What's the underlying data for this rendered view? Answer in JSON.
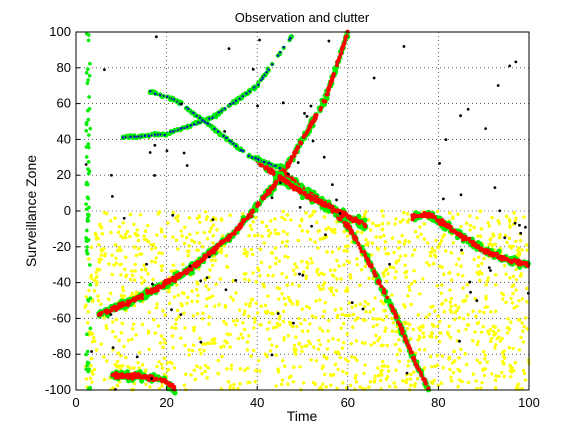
{
  "chart_data": {
    "type": "scatter",
    "title": "Observation and clutter",
    "xlabel": "Time",
    "ylabel": "Surveillance Zone",
    "xlim": [
      0,
      100
    ],
    "ylim": [
      -100,
      100
    ],
    "xticks": [
      0,
      20,
      40,
      60,
      80,
      100
    ],
    "yticks": [
      -100,
      -80,
      -60,
      -40,
      -20,
      0,
      20,
      40,
      60,
      80,
      100
    ],
    "grid": true,
    "legend": "none",
    "colors": {
      "clutter": "#ffff00",
      "detections": "#00ee00",
      "tracks": "#ff0000",
      "estimates": "#0000cc",
      "sparse": "#000000"
    },
    "clutter_region": {
      "x": [
        2,
        100
      ],
      "y": [
        -100,
        0
      ]
    },
    "series": [
      {
        "role": "track",
        "x": [
          5,
          15,
          25,
          35,
          45,
          55,
          60
        ],
        "y": [
          -58,
          -47,
          -33,
          -12,
          18,
          62,
          100
        ]
      },
      {
        "role": "track",
        "x": [
          45,
          50,
          55,
          60,
          65,
          70,
          75,
          78
        ],
        "y": [
          24,
          12,
          4,
          -8,
          -30,
          -55,
          -85,
          -100
        ]
      },
      {
        "role": "track",
        "x": [
          40,
          50,
          60,
          64
        ],
        "y": [
          28,
          10,
          -3,
          -8
        ]
      },
      {
        "role": "track",
        "x": [
          74,
          78,
          84,
          90,
          95,
          100
        ],
        "y": [
          -3,
          -2,
          -12,
          -22,
          -27,
          -30
        ]
      },
      {
        "role": "track",
        "x": [
          8,
          14,
          20,
          22
        ],
        "y": [
          -92,
          -92,
          -95,
          -100
        ]
      },
      {
        "role": "estimate",
        "x": [
          10,
          20,
          30,
          40,
          48
        ],
        "y": [
          41,
          43,
          52,
          70,
          99
        ]
      },
      {
        "role": "estimate",
        "x": [
          16,
          22,
          30,
          38,
          45
        ],
        "y": [
          67,
          62,
          47,
          31,
          24
        ]
      }
    ]
  }
}
